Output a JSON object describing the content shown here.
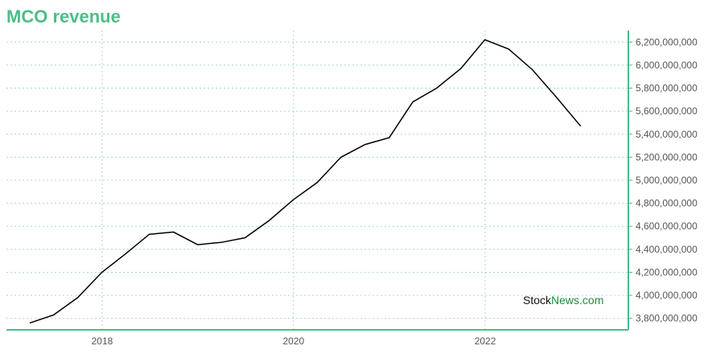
{
  "title": "MCO revenue",
  "watermark": {
    "part1": "Stock",
    "part2": "News",
    "part3": ".com"
  },
  "colors": {
    "accent": "#4dbd87",
    "line": "#000000",
    "grid": "#a8d8c8"
  },
  "chart_data": {
    "type": "line",
    "title": "MCO revenue",
    "xlabel": "",
    "ylabel": "",
    "x_ticks": [
      "2018",
      "2020",
      "2022"
    ],
    "y_ticks": [
      "3,800,000,000",
      "4,000,000,000",
      "4,200,000,000",
      "4,400,000,000",
      "4,600,000,000",
      "4,800,000,000",
      "5,000,000,000",
      "5,200,000,000",
      "5,400,000,000",
      "5,600,000,000",
      "5,800,000,000",
      "6,000,000,000",
      "6,200,000,000"
    ],
    "ylim": [
      3700000000,
      6300000000
    ],
    "xlim": [
      "2017-01-01",
      "2023-07-01"
    ],
    "grid": true,
    "series": [
      {
        "x": [
          "2017-03-31",
          "2017-06-30",
          "2017-09-30",
          "2017-12-31",
          "2018-03-31",
          "2018-06-30",
          "2018-09-30",
          "2018-12-31",
          "2019-03-31",
          "2019-06-30",
          "2019-09-30",
          "2019-12-31",
          "2020-03-31",
          "2020-06-30",
          "2020-09-30",
          "2020-12-31",
          "2021-03-31",
          "2021-06-30",
          "2021-09-30",
          "2021-12-31",
          "2022-03-31",
          "2022-06-30",
          "2022-09-30",
          "2022-12-31"
        ],
        "values": [
          3760000000,
          3830000000,
          3980000000,
          4200000000,
          4360000000,
          4530000000,
          4550000000,
          4440000000,
          4460000000,
          4500000000,
          4650000000,
          4830000000,
          4980000000,
          5200000000,
          5310000000,
          5370000000,
          5680000000,
          5800000000,
          5970000000,
          6220000000,
          6140000000,
          5960000000,
          5720000000,
          5470000000
        ]
      }
    ]
  }
}
